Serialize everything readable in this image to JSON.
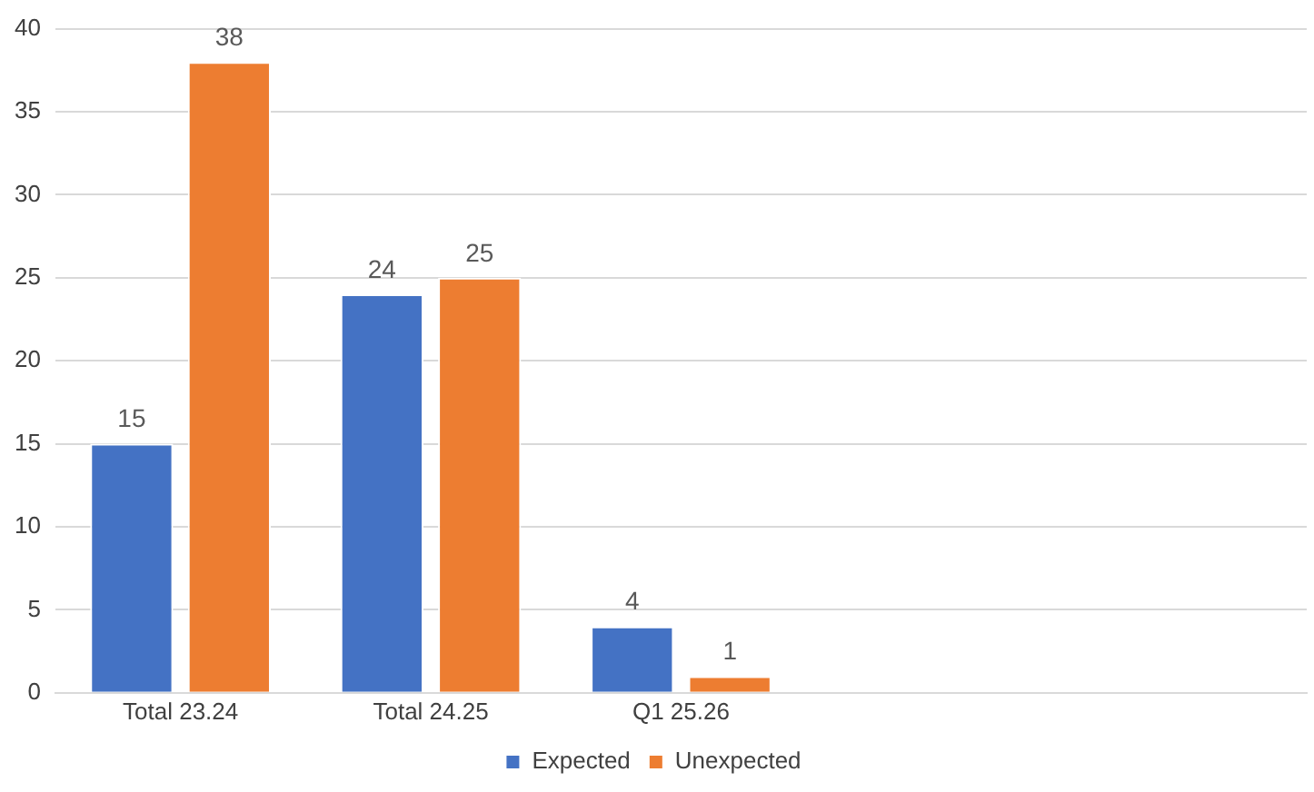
{
  "chart_data": {
    "type": "bar",
    "categories": [
      "Total 23.24",
      "Total 24.25",
      "Q1 25.26",
      null,
      null
    ],
    "series": [
      {
        "name": "Expected",
        "color": "#4472c4",
        "values": [
          15,
          24,
          4,
          null,
          null
        ]
      },
      {
        "name": "Unexpected",
        "color": "#ed7d31",
        "values": [
          38,
          25,
          1,
          null,
          null
        ]
      }
    ],
    "ylim": [
      0,
      40
    ],
    "yticks": [
      0,
      5,
      10,
      15,
      20,
      25,
      30,
      35,
      40
    ],
    "grid": "y",
    "legend": "bottom",
    "data_labels": true
  }
}
